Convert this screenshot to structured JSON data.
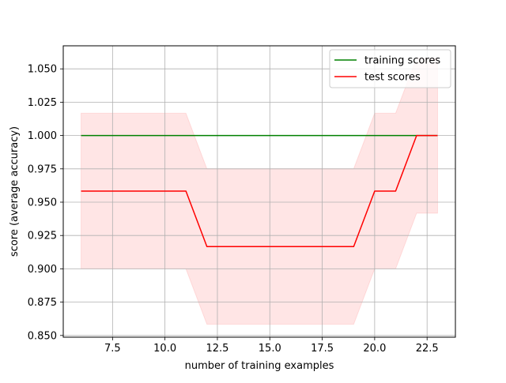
{
  "chart_data": {
    "type": "line",
    "xlabel": "number of training examples",
    "ylabel": "score (average accuracy)",
    "xlim": [
      5.15,
      23.85
    ],
    "ylim": [
      0.8487,
      1.0673
    ],
    "grid": true,
    "legend_position": "top-right",
    "x_ticks": [
      7.5,
      10.0,
      12.5,
      15.0,
      17.5,
      20.0,
      22.5
    ],
    "x_tick_labels": [
      "7.5",
      "10.0",
      "12.5",
      "15.0",
      "17.5",
      "20.0",
      "22.5"
    ],
    "y_ticks": [
      0.85,
      0.875,
      0.9,
      0.925,
      0.95,
      0.975,
      1.0,
      1.025,
      1.05
    ],
    "y_tick_labels": [
      "0.850",
      "0.875",
      "0.900",
      "0.925",
      "0.950",
      "0.975",
      "1.000",
      "1.025",
      "1.050"
    ],
    "x": [
      6,
      7,
      8,
      9,
      10,
      11,
      12,
      13,
      14,
      15,
      16,
      17,
      18,
      19,
      20,
      21,
      22,
      23
    ],
    "series": [
      {
        "name": "training scores",
        "color": "#008000",
        "values": [
          1.0,
          1.0,
          1.0,
          1.0,
          1.0,
          1.0,
          1.0,
          1.0,
          1.0,
          1.0,
          1.0,
          1.0,
          1.0,
          1.0,
          1.0,
          1.0,
          1.0,
          1.0
        ]
      },
      {
        "name": "test scores",
        "color": "#ff0000",
        "band_color": "#ff0000",
        "values": [
          0.9583,
          0.9583,
          0.9583,
          0.9583,
          0.9583,
          0.9583,
          0.9167,
          0.9167,
          0.9167,
          0.9167,
          0.9167,
          0.9167,
          0.9167,
          0.9167,
          0.9583,
          0.9583,
          1.0,
          1.0
        ],
        "band_lower": [
          0.9,
          0.9,
          0.9,
          0.9,
          0.9,
          0.9,
          0.8584,
          0.8584,
          0.8584,
          0.8584,
          0.8584,
          0.8584,
          0.8584,
          0.8584,
          0.9,
          0.9,
          0.9417,
          0.9417
        ],
        "band_upper": [
          1.0167,
          1.0167,
          1.0167,
          1.0167,
          1.0167,
          1.0167,
          0.975,
          0.975,
          0.975,
          0.975,
          0.975,
          0.975,
          0.975,
          0.975,
          1.0167,
          1.0167,
          1.0583,
          1.0583
        ]
      }
    ]
  }
}
